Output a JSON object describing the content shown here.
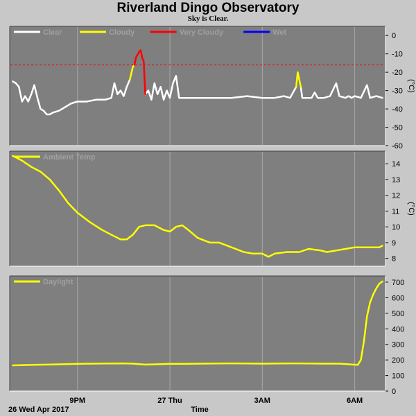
{
  "title": "Riverland Dingo Observatory",
  "subtitle": "Sky is Clear.",
  "xaxis": {
    "label": "Time",
    "date_label": "26 Wed Apr 2017",
    "ticks": [
      {
        "t": 2.0,
        "label": "9PM"
      },
      {
        "t": 5.0,
        "label": "27 Thu"
      },
      {
        "t": 8.0,
        "label": "3AM"
      },
      {
        "t": 11.0,
        "label": "6AM"
      }
    ],
    "range": [
      -0.2,
      12.0
    ]
  },
  "colors": {
    "panel": "#7f7f7f",
    "grid": "#a8a8a8",
    "clear": "#ffffff",
    "cloudy": "#ffff00",
    "very_cloudy": "#ff0000",
    "wet": "#0000ff",
    "threshold": "#ff0000"
  },
  "chart_data": [
    {
      "type": "line",
      "name": "sky",
      "ylabel": "(°C)",
      "ylim": [
        -60,
        5
      ],
      "yticks": [
        0,
        -10,
        -20,
        -30,
        -40,
        -50,
        -60
      ],
      "legend": [
        "Clear",
        "Cloudy",
        "Very Cloudy",
        "Wet"
      ],
      "threshold": -16,
      "series": [
        {
          "name": "Clear",
          "color": "#ffffff",
          "segments": [
            [
              [
                -0.1,
                -25
              ],
              [
                0.0,
                -26
              ],
              [
                0.1,
                -28
              ],
              [
                0.2,
                -36
              ],
              [
                0.3,
                -33
              ],
              [
                0.4,
                -36
              ],
              [
                0.5,
                -32
              ],
              [
                0.6,
                -27
              ],
              [
                0.7,
                -34
              ],
              [
                0.8,
                -40
              ],
              [
                0.9,
                -41
              ],
              [
                1.0,
                -43
              ],
              [
                1.1,
                -43
              ],
              [
                1.2,
                -42
              ],
              [
                1.4,
                -41
              ],
              [
                1.6,
                -39
              ],
              [
                1.8,
                -37
              ],
              [
                2.0,
                -36
              ],
              [
                2.3,
                -36
              ],
              [
                2.6,
                -35
              ],
              [
                2.9,
                -35
              ],
              [
                3.1,
                -34
              ],
              [
                3.2,
                -26
              ],
              [
                3.3,
                -32
              ],
              [
                3.4,
                -30
              ],
              [
                3.5,
                -33
              ],
              [
                3.6,
                -28
              ],
              [
                3.7,
                -24
              ]
            ],
            [
              [
                4.2,
                -32
              ],
              [
                4.3,
                -30
              ],
              [
                4.4,
                -35
              ],
              [
                4.5,
                -26
              ],
              [
                4.6,
                -32
              ],
              [
                4.7,
                -28
              ],
              [
                4.8,
                -35
              ],
              [
                4.9,
                -30
              ],
              [
                5.0,
                -34
              ],
              [
                5.1,
                -26
              ],
              [
                5.2,
                -22
              ],
              [
                5.3,
                -34
              ],
              [
                5.6,
                -34
              ],
              [
                6.0,
                -34
              ],
              [
                6.5,
                -34
              ],
              [
                7.0,
                -34
              ],
              [
                7.5,
                -33
              ],
              [
                8.0,
                -34
              ],
              [
                8.4,
                -34
              ],
              [
                8.7,
                -33
              ],
              [
                8.9,
                -34
              ],
              [
                9.1,
                -28
              ]
            ],
            [
              [
                9.25,
                -28
              ],
              [
                9.3,
                -34
              ],
              [
                9.6,
                -34
              ],
              [
                9.7,
                -31
              ],
              [
                9.8,
                -34
              ],
              [
                10.0,
                -34
              ],
              [
                10.2,
                -33
              ],
              [
                10.4,
                -26
              ],
              [
                10.5,
                -33
              ],
              [
                10.7,
                -34
              ],
              [
                10.8,
                -33
              ],
              [
                10.9,
                -34
              ],
              [
                11.0,
                -33
              ],
              [
                11.2,
                -34
              ],
              [
                11.4,
                -27
              ],
              [
                11.5,
                -34
              ],
              [
                11.7,
                -33
              ],
              [
                11.9,
                -34
              ]
            ]
          ]
        },
        {
          "name": "Cloudy",
          "color": "#ffff00",
          "segments": [
            [
              [
                3.7,
                -24
              ],
              [
                3.8,
                -17
              ],
              [
                3.85,
                -16
              ]
            ],
            [
              [
                9.1,
                -28
              ],
              [
                9.15,
                -20
              ],
              [
                9.2,
                -24
              ],
              [
                9.25,
                -28
              ]
            ]
          ]
        },
        {
          "name": "Very Cloudy",
          "color": "#ff0000",
          "segments": [
            [
              [
                3.85,
                -16
              ],
              [
                3.9,
                -12
              ],
              [
                4.0,
                -9
              ],
              [
                4.05,
                -8
              ],
              [
                4.1,
                -12
              ],
              [
                4.15,
                -14
              ],
              [
                4.2,
                -32
              ]
            ]
          ]
        },
        {
          "name": "Wet",
          "color": "#0000ff",
          "segments": []
        }
      ]
    },
    {
      "type": "line",
      "name": "ambient",
      "ylabel": "(°C)",
      "ylim": [
        7.5,
        14.8
      ],
      "yticks": [
        8,
        9,
        10,
        11,
        12,
        13,
        14
      ],
      "legend": [
        "Ambient Temp"
      ],
      "series": [
        {
          "name": "Ambient Temp",
          "color": "#ffff00",
          "points": [
            [
              -0.1,
              14.5
            ],
            [
              0.2,
              14.2
            ],
            [
              0.5,
              13.8
            ],
            [
              0.8,
              13.5
            ],
            [
              1.1,
              13.0
            ],
            [
              1.4,
              12.3
            ],
            [
              1.7,
              11.5
            ],
            [
              2.0,
              10.9
            ],
            [
              2.4,
              10.3
            ],
            [
              2.8,
              9.8
            ],
            [
              3.2,
              9.4
            ],
            [
              3.4,
              9.2
            ],
            [
              3.6,
              9.2
            ],
            [
              3.8,
              9.5
            ],
            [
              4.0,
              10.0
            ],
            [
              4.2,
              10.1
            ],
            [
              4.5,
              10.1
            ],
            [
              4.8,
              9.8
            ],
            [
              5.0,
              9.7
            ],
            [
              5.2,
              10.0
            ],
            [
              5.4,
              10.1
            ],
            [
              5.6,
              9.8
            ],
            [
              5.9,
              9.3
            ],
            [
              6.3,
              9.0
            ],
            [
              6.6,
              9.0
            ],
            [
              7.0,
              8.7
            ],
            [
              7.4,
              8.4
            ],
            [
              7.7,
              8.3
            ],
            [
              8.0,
              8.3
            ],
            [
              8.2,
              8.1
            ],
            [
              8.4,
              8.3
            ],
            [
              8.8,
              8.4
            ],
            [
              9.2,
              8.4
            ],
            [
              9.5,
              8.6
            ],
            [
              9.9,
              8.5
            ],
            [
              10.1,
              8.4
            ],
            [
              10.4,
              8.5
            ],
            [
              10.7,
              8.6
            ],
            [
              11.0,
              8.7
            ],
            [
              11.3,
              8.7
            ],
            [
              11.6,
              8.7
            ],
            [
              11.8,
              8.7
            ],
            [
              11.9,
              8.8
            ]
          ]
        }
      ]
    },
    {
      "type": "line",
      "name": "daylight",
      "ylabel": "",
      "ylim": [
        0,
        740
      ],
      "yticks": [
        0,
        100,
        200,
        300,
        400,
        500,
        600,
        700
      ],
      "legend": [
        "Daylight"
      ],
      "series": [
        {
          "name": "Daylight",
          "color": "#ffff00",
          "points": [
            [
              -0.1,
              165
            ],
            [
              0.5,
              168
            ],
            [
              1.0,
              170
            ],
            [
              1.5,
              172
            ],
            [
              2.0,
              175
            ],
            [
              2.5,
              176
            ],
            [
              3.0,
              177
            ],
            [
              3.5,
              178
            ],
            [
              3.8,
              176
            ],
            [
              4.2,
              170
            ],
            [
              4.6,
              172
            ],
            [
              5.0,
              175
            ],
            [
              5.5,
              175
            ],
            [
              6.0,
              176
            ],
            [
              6.5,
              177
            ],
            [
              7.0,
              178
            ],
            [
              7.5,
              177
            ],
            [
              8.0,
              176
            ],
            [
              8.5,
              177
            ],
            [
              9.0,
              178
            ],
            [
              9.5,
              177
            ],
            [
              10.0,
              176
            ],
            [
              10.5,
              176
            ],
            [
              10.8,
              172
            ],
            [
              11.1,
              168
            ],
            [
              11.2,
              200
            ],
            [
              11.3,
              320
            ],
            [
              11.4,
              480
            ],
            [
              11.5,
              570
            ],
            [
              11.6,
              620
            ],
            [
              11.7,
              660
            ],
            [
              11.8,
              690
            ],
            [
              11.9,
              705
            ]
          ]
        }
      ]
    }
  ]
}
